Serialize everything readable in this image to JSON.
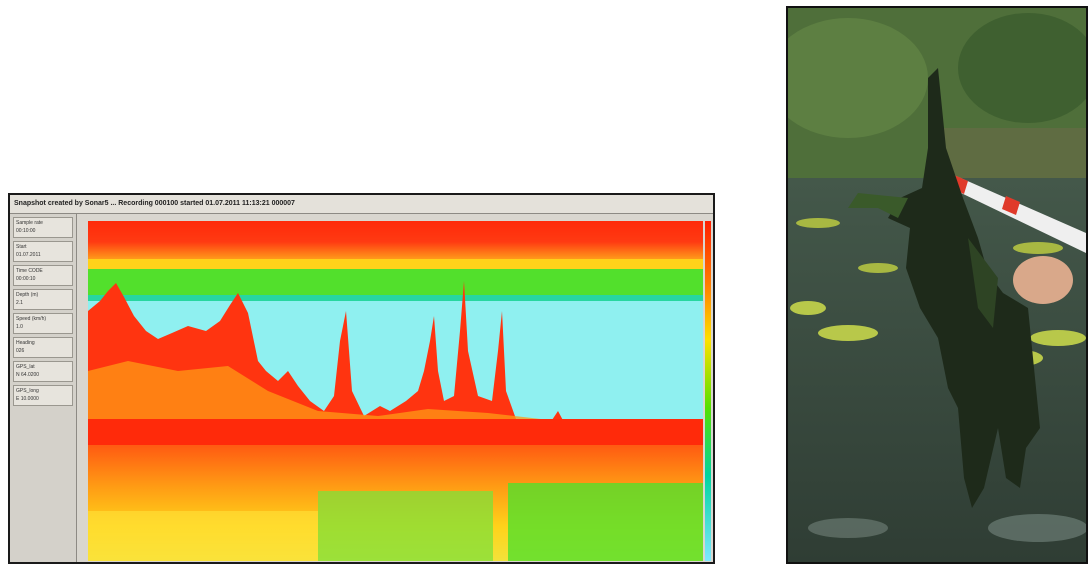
{
  "echogram": {
    "title": "Snapshot created by Sonar5 ... Recording 000100 started 01.07.2011 11:13:21 000007",
    "info": [
      {
        "label": "Sample rate",
        "value": "00:10:00"
      },
      {
        "label": "Start",
        "value": "01.07.2011"
      },
      {
        "label": "Time CODE",
        "value": "00:00:10"
      },
      {
        "label": "Depth (m)",
        "value": "2.1"
      },
      {
        "label": "Speed (km/h)",
        "value": "1.0"
      },
      {
        "label": "Heading",
        "value": "026"
      },
      {
        "label": "GPS_lat",
        "value": "N 64.0200"
      },
      {
        "label": "GPS_long",
        "value": "E 10.0000"
      }
    ],
    "colors": {
      "surface": "#ff2a0a",
      "strong": "#ff3a10",
      "orange": "#ff8c10",
      "yellow": "#ffd21a",
      "green": "#4ee02a",
      "cyan": "#8ff0f0"
    }
  },
  "photo": {
    "colors": {
      "water": "#3f5247",
      "pads": "#b8c84a",
      "trees": "#4f6f3a",
      "pole_red": "#e03a2a",
      "pole_white": "#efefef",
      "weed": "#1e2a1a"
    }
  }
}
